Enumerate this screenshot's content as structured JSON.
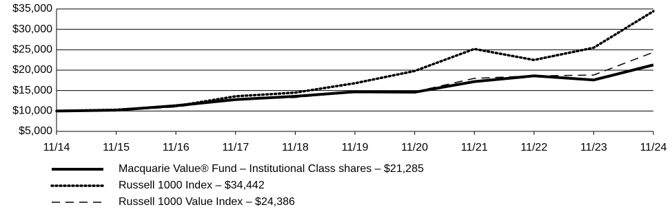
{
  "chart_data": {
    "type": "line",
    "categories": [
      "11/14",
      "11/15",
      "11/16",
      "11/17",
      "11/18",
      "11/19",
      "11/20",
      "11/21",
      "11/22",
      "11/23",
      "11/24"
    ],
    "series": [
      {
        "name": "Macquarie Value® Fund – Institutional Class shares – $21,285",
        "color": "#000000",
        "style": "solid",
        "values": [
          10000,
          10200,
          11300,
          12800,
          13600,
          14700,
          14600,
          17200,
          18600,
          17600,
          21285
        ]
      },
      {
        "name": "Russell 1000 Index – $34,442",
        "color": "#000000",
        "style": "dotted",
        "values": [
          10000,
          10300,
          11200,
          13600,
          14500,
          16800,
          19800,
          25200,
          22500,
          25500,
          34442
        ]
      },
      {
        "name": "Russell 1000 Value Index – $24,386",
        "color": "#000000",
        "style": "dashed",
        "values": [
          10000,
          10100,
          11000,
          12800,
          13300,
          14700,
          14700,
          18000,
          18600,
          18800,
          24386
        ]
      }
    ],
    "ylim": [
      5000,
      35000
    ],
    "yticks": [
      {
        "value": 5000,
        "label": "$5,000"
      },
      {
        "value": 10000,
        "label": "$10,000"
      },
      {
        "value": 15000,
        "label": "$15,000"
      },
      {
        "value": 20000,
        "label": "$20,000"
      },
      {
        "value": 25000,
        "label": "$25,000"
      },
      {
        "value": 30000,
        "label": "$30,000"
      },
      {
        "value": 35000,
        "label": "$35,000"
      }
    ],
    "grid": true,
    "legend": "bottom"
  }
}
